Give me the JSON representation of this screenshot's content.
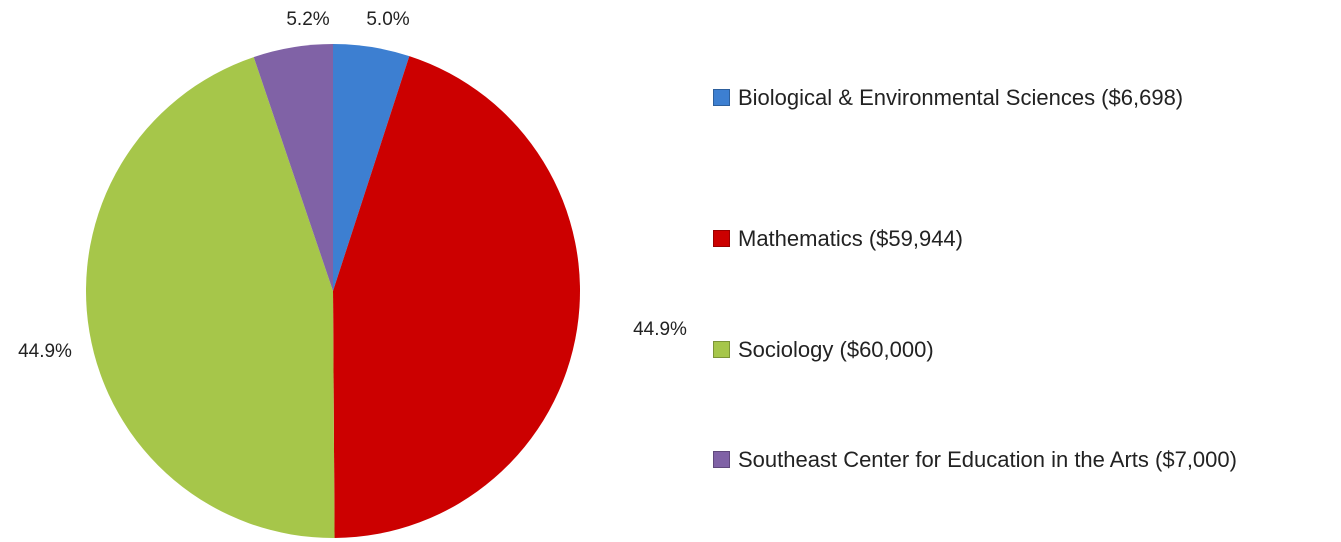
{
  "chart_data": {
    "type": "pie",
    "categories": [
      "Biological & Environmental Sciences ($6,698)",
      "Mathematics ($59,944)",
      "Sociology ($60,000)",
      "Southeast Center for Education in the Arts ($7,000)"
    ],
    "values": [
      5.0,
      44.9,
      44.9,
      5.2
    ],
    "value_labels": [
      "5.0%",
      "44.9%",
      "44.9%",
      "5.2%"
    ],
    "colors": [
      "#3d7fd1",
      "#cc0000",
      "#a6c64a",
      "#8062a6"
    ],
    "legend": "right"
  }
}
